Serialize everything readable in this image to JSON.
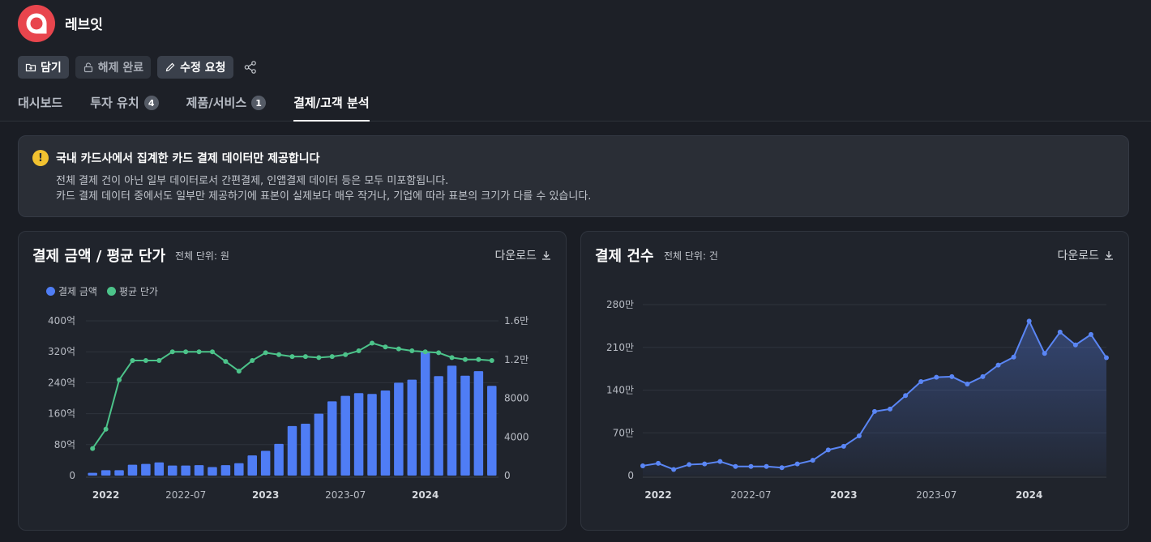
{
  "app": {
    "company_name": "레브잇",
    "logo_color": "#e8454d"
  },
  "actions": {
    "save": {
      "label": "담기",
      "icon": "folder-plus-icon"
    },
    "unlock": {
      "label": "해제 완료",
      "icon": "unlock-icon"
    },
    "edit_request": {
      "label": "수정 요청",
      "icon": "pencil-icon"
    },
    "share": {
      "icon": "share-icon"
    }
  },
  "tabs": [
    {
      "label": "대시보드",
      "badge": "",
      "active": false
    },
    {
      "label": "투자 유치",
      "badge": "4",
      "active": false
    },
    {
      "label": "제품/서비스",
      "badge": "1",
      "active": false
    },
    {
      "label": "결제/고객 분석",
      "badge": "",
      "active": true
    }
  ],
  "notice": {
    "icon": "warning-icon",
    "title": "국내 카드사에서 집계한 카드 결제 데이터만 제공합니다",
    "lines": [
      "전체 결제 건이 아닌 일부 데이터로서 간편결제, 인앱결제 데이터 등은 모두 미포함됩니다.",
      "카드 결제 데이터 중에서도 일부만 제공하기에 표본이 실제보다 매우 작거나, 기업에 따라 표본의 크기가 다를 수 있습니다."
    ]
  },
  "colors": {
    "bar_blue": "#4f7df5",
    "line_green": "#4cc38a",
    "line_blue": "#5a86f5"
  },
  "cards": {
    "amount": {
      "title": "결제 금액 / 평균 단가",
      "unit": "전체 단위: 원",
      "download": "다운로드"
    },
    "count": {
      "title": "결제 건수",
      "unit": "전체 단위: 건",
      "download": "다운로드"
    }
  },
  "chart_data": [
    {
      "type": "bar",
      "title": "결제 금액 / 평균 단가",
      "legend": [
        "결제 금액",
        "평균 단가"
      ],
      "legend_position": "top-left",
      "x_tick_labels": [
        "2022",
        "2022-07",
        "2023",
        "2023-07",
        "2024"
      ],
      "x_tick_index": [
        1,
        7,
        13,
        19,
        25
      ],
      "y_left_ticks": [
        "0",
        "80억",
        "160억",
        "240억",
        "320억",
        "400억"
      ],
      "y_left_range": [
        0,
        400
      ],
      "y_right_ticks": [
        "0",
        "4000",
        "8000",
        "1.2만",
        "1.6만"
      ],
      "y_right_range": [
        0,
        16000
      ],
      "series": [
        {
          "name": "결제 금액",
          "type": "bar",
          "unit": "억",
          "values": [
            7,
            14,
            14,
            28,
            30,
            34,
            26,
            26,
            27,
            22,
            27,
            32,
            52,
            64,
            82,
            128,
            134,
            160,
            192,
            206,
            213,
            211,
            220,
            240,
            248,
            320,
            257,
            284,
            258,
            270,
            232
          ]
        },
        {
          "name": "평균 단가",
          "type": "line",
          "values": [
            2800,
            4800,
            9900,
            11900,
            11900,
            11900,
            12800,
            12800,
            12800,
            12800,
            11800,
            10800,
            11900,
            12700,
            12500,
            12300,
            12300,
            12200,
            12300,
            12500,
            12900,
            13700,
            13300,
            13100,
            12900,
            12800,
            12700,
            12200,
            12000,
            12000,
            11900
          ]
        }
      ],
      "grid": true
    },
    {
      "type": "area",
      "title": "결제 건수",
      "x_tick_labels": [
        "2022",
        "2022-07",
        "2023",
        "2023-07",
        "2024"
      ],
      "x_tick_index": [
        1,
        7,
        13,
        19,
        25
      ],
      "y_ticks": [
        "0",
        "70만",
        "140만",
        "210만",
        "280만"
      ],
      "y_range": [
        0,
        280
      ],
      "series": [
        {
          "name": "결제 건수",
          "unit": "만",
          "values": [
            16,
            20,
            10,
            18,
            19,
            23,
            15,
            15,
            15,
            13,
            19,
            25,
            42,
            48,
            65,
            105,
            109,
            131,
            154,
            161,
            162,
            150,
            162,
            181,
            194,
            253,
            200,
            235,
            214,
            231,
            193
          ]
        }
      ],
      "grid": true
    }
  ]
}
